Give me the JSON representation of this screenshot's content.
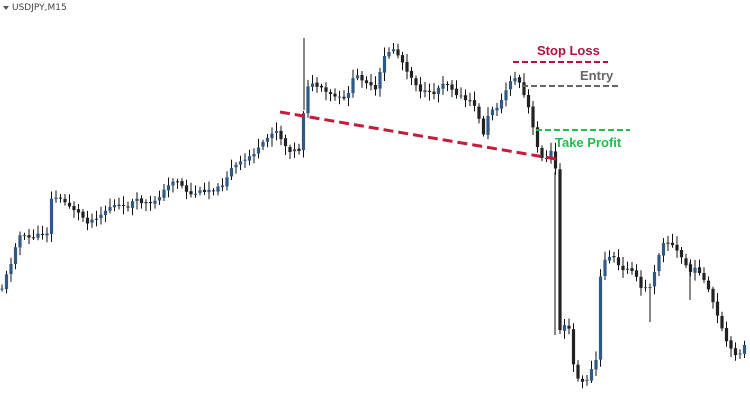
{
  "window": {
    "title": "USDJPY,M15"
  },
  "annotations": {
    "stop_loss": {
      "label": "Stop Loss",
      "color": "#b3103c"
    },
    "entry": {
      "label": "Entry",
      "color": "#666666"
    },
    "take_profit": {
      "label": "Take Profit",
      "color": "#1fbf4f"
    },
    "trendline": {
      "color": "#c41c3c"
    }
  },
  "colors": {
    "bull": "#2e5a88",
    "bear": "#222222",
    "wick": "#111111",
    "background": "#ffffff"
  },
  "icons": {
    "menu": "triangle-down-icon"
  }
}
